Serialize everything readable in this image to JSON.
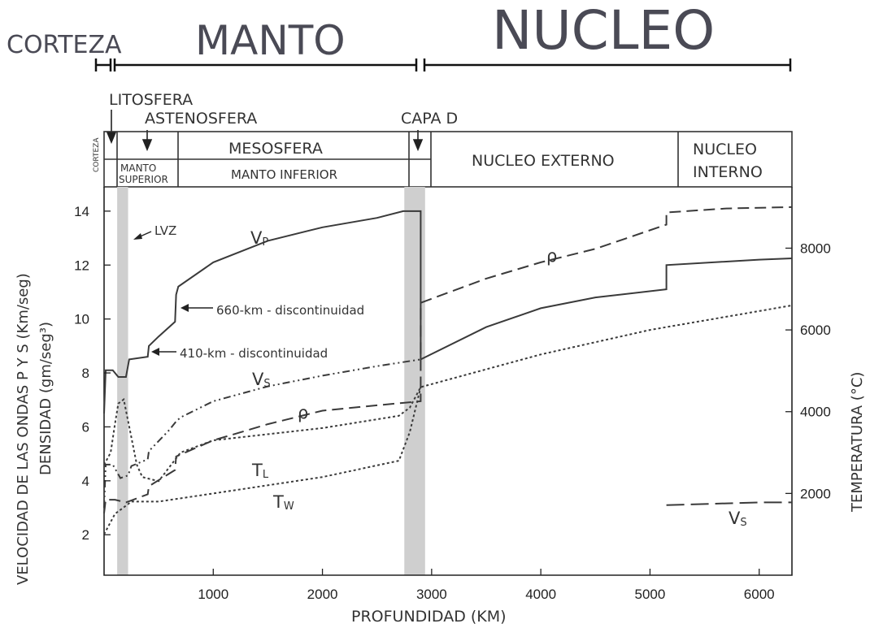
{
  "headers": {
    "corteza": "CORTEZA",
    "manto": "MANTO",
    "nucleo": "NUCLEO"
  },
  "layers": {
    "litosfera": "LITOSFERA",
    "astenosfera": "ASTENOSFERA",
    "capa_d": "CAPA D",
    "corteza_small": "CORTEZA",
    "manto_superior": [
      "MANTO",
      "SUPERIOR"
    ],
    "mesosfera": "MESOSFERA",
    "manto_inferior": "MANTO INFERIOR",
    "nucleo_externo": "NUCLEO EXTERNO",
    "nucleo_interno": [
      "NUCLEO",
      "INTERNO"
    ]
  },
  "annotations": {
    "lvz": "LVZ",
    "d660": "660-km - discontinuidad",
    "d410": "410-km - discontinuidad"
  },
  "colors": {
    "curve": "#3a3a3a",
    "shade": "#cfcfcf",
    "header_text": "#4a4a55"
  },
  "chart_data": {
    "type": "line",
    "xlabel": "PROFUNDIDAD (KM)",
    "ylabel_line1": "VELOCIDAD DE LAS ONDAS P Y S (Km/seg)",
    "ylabel_line2": "DENSIDAD (gm/seg³)",
    "y2label": "TEMPERATURA (°C)",
    "xlim": [
      0,
      6300
    ],
    "ylim": [
      0.5,
      14.9
    ],
    "y2lim": [
      0,
      9500
    ],
    "xticks": [
      1000,
      2000,
      3000,
      4000,
      5000,
      6000
    ],
    "yticks": [
      2,
      4,
      6,
      8,
      10,
      12,
      14
    ],
    "y2ticks": [
      2000,
      4000,
      6000,
      8000
    ],
    "shaded_bands": [
      [
        120,
        220
      ],
      [
        2750,
        2940
      ]
    ],
    "series": [
      {
        "name": "VP",
        "axis": "left",
        "style": "solid",
        "points": [
          [
            0,
            6.5
          ],
          [
            15,
            8.1
          ],
          [
            80,
            8.1
          ],
          [
            130,
            7.85
          ],
          [
            200,
            7.85
          ],
          [
            230,
            8.5
          ],
          [
            400,
            8.6
          ],
          [
            410,
            9.0
          ],
          [
            500,
            9.35
          ],
          [
            650,
            9.9
          ],
          [
            660,
            10.9
          ],
          [
            680,
            11.2
          ],
          [
            1000,
            12.1
          ],
          [
            1500,
            12.9
          ],
          [
            2000,
            13.4
          ],
          [
            2500,
            13.75
          ],
          [
            2740,
            14.0
          ],
          [
            2900,
            14.0
          ],
          [
            2900,
            8.5
          ],
          [
            3500,
            9.7
          ],
          [
            4000,
            10.4
          ],
          [
            4500,
            10.8
          ],
          [
            5150,
            11.1
          ],
          [
            5150,
            12.0
          ],
          [
            6000,
            12.2
          ],
          [
            6300,
            12.25
          ]
        ]
      },
      {
        "name": "VS",
        "axis": "left",
        "style": "dashdot",
        "points": [
          [
            0,
            3.0
          ],
          [
            15,
            4.6
          ],
          [
            80,
            4.6
          ],
          [
            150,
            4.1
          ],
          [
            220,
            4.2
          ],
          [
            250,
            4.55
          ],
          [
            400,
            4.8
          ],
          [
            410,
            5.1
          ],
          [
            600,
            5.9
          ],
          [
            660,
            6.2
          ],
          [
            700,
            6.35
          ],
          [
            1000,
            6.95
          ],
          [
            1500,
            7.5
          ],
          [
            2000,
            7.9
          ],
          [
            2500,
            8.25
          ],
          [
            2900,
            8.5
          ]
        ]
      },
      {
        "name": "VS",
        "axis": "left",
        "style": "longdash",
        "points": [
          [
            5150,
            3.1
          ],
          [
            6000,
            3.2
          ],
          [
            6300,
            3.2
          ]
        ]
      },
      {
        "name": "ρ",
        "axis": "left",
        "style": "dash",
        "points": [
          [
            0,
            2.8
          ],
          [
            15,
            3.3
          ],
          [
            100,
            3.3
          ],
          [
            200,
            3.2
          ],
          [
            400,
            3.5
          ],
          [
            410,
            3.8
          ],
          [
            650,
            4.4
          ],
          [
            660,
            4.9
          ],
          [
            1000,
            5.5
          ],
          [
            1500,
            6.1
          ],
          [
            2000,
            6.6
          ],
          [
            2500,
            6.8
          ],
          [
            2900,
            6.95
          ],
          [
            2900,
            10.6
          ],
          [
            3500,
            11.5
          ],
          [
            4000,
            12.1
          ],
          [
            4500,
            12.6
          ],
          [
            5150,
            13.5
          ],
          [
            5150,
            13.95
          ],
          [
            5700,
            14.1
          ],
          [
            6300,
            14.15
          ]
        ]
      },
      {
        "name": "TL",
        "axis": "right",
        "style": "dotted",
        "points": [
          [
            0,
            2700
          ],
          [
            60,
            3000
          ],
          [
            100,
            3700
          ],
          [
            130,
            4200
          ],
          [
            180,
            4300
          ],
          [
            300,
            2700
          ],
          [
            350,
            2400
          ],
          [
            500,
            2300
          ],
          [
            700,
            3000
          ],
          [
            1000,
            3300
          ],
          [
            2000,
            3600
          ],
          [
            2700,
            3900
          ],
          [
            2800,
            4100
          ],
          [
            2900,
            4600
          ],
          [
            4000,
            5400
          ],
          [
            5000,
            6000
          ],
          [
            6300,
            6600
          ]
        ]
      },
      {
        "name": "TW",
        "axis": "right",
        "style": "dotted",
        "points": [
          [
            0,
            1000
          ],
          [
            100,
            1500
          ],
          [
            200,
            1700
          ],
          [
            250,
            1800
          ],
          [
            500,
            1800
          ],
          [
            1000,
            2000
          ],
          [
            2000,
            2400
          ],
          [
            2700,
            2800
          ],
          [
            2800,
            3500
          ],
          [
            2900,
            4600
          ]
        ]
      }
    ],
    "series_labels": [
      {
        "text": "VP",
        "sub": "P",
        "base": "V"
      },
      {
        "text": "VS",
        "sub": "S",
        "base": "V"
      },
      {
        "text": "ρ"
      },
      {
        "text": "TL",
        "sub": "L",
        "base": "T"
      },
      {
        "text": "TW",
        "sub": "W",
        "base": "T"
      },
      {
        "text": "ρ"
      },
      {
        "text": "VS",
        "sub": "S",
        "base": "V"
      }
    ]
  }
}
